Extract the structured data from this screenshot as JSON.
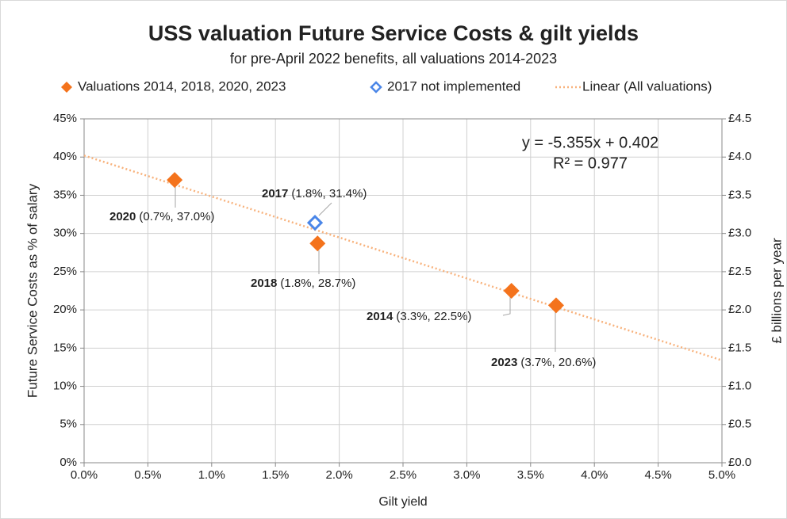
{
  "chart_data": {
    "type": "scatter",
    "title": "USS valuation Future Service Costs & gilt yields",
    "subtitle": "for pre-April 2022 benefits, all valuations 2014-2023",
    "x_label": "Gilt yield",
    "y_label": "Future Service Costs as % of salary",
    "y2_label": "£ billions per year",
    "series": [
      {
        "name": "Valuations 2014, 2018, 2020, 2023",
        "color": "#f4731c",
        "marker": "filled-diamond",
        "x": [
          0.71,
          1.83,
          3.35,
          3.7
        ],
        "values": [
          37.0,
          28.7,
          22.5,
          20.6
        ]
      },
      {
        "name": "2017 not implemented",
        "color": "#4a86e8",
        "marker": "hollow-diamond",
        "x": [
          1.81
        ],
        "values": [
          31.4
        ]
      },
      {
        "name": "Linear (All valuations)",
        "color": "#f8b27c",
        "marker": "dotted-line",
        "x": [
          0,
          5
        ],
        "values": [
          40.2,
          13.4
        ]
      }
    ],
    "annotations": [
      {
        "bold": "2020",
        "text": "(0.7%, 37.0%)"
      },
      {
        "bold": "2017",
        "text": "(1.8%, 31.4%)"
      },
      {
        "bold": "2018",
        "text": "(1.8%, 28.7%)"
      },
      {
        "bold": "2014",
        "text": "(3.3%, 22.5%)"
      },
      {
        "bold": "2023",
        "text": "(3.7%, 20.6%)"
      }
    ],
    "equation": [
      "y = -5.355x + 0.402",
      "R² = 0.977"
    ],
    "xlim": [
      0,
      5
    ],
    "xticks": [
      {
        "value": 0,
        "label": "0.0%"
      },
      {
        "value": 0.5,
        "label": "0.5%"
      },
      {
        "value": 1,
        "label": "1.0%"
      },
      {
        "value": 1.5,
        "label": "1.5%"
      },
      {
        "value": 2,
        "label": "2.0%"
      },
      {
        "value": 2.5,
        "label": "2.5%"
      },
      {
        "value": 3,
        "label": "3.0%"
      },
      {
        "value": 3.5,
        "label": "3.5%"
      },
      {
        "value": 4,
        "label": "4.0%"
      },
      {
        "value": 4.5,
        "label": "4.5%"
      },
      {
        "value": 5,
        "label": "5.0%"
      }
    ],
    "ylim": [
      0,
      45
    ],
    "yticks": [
      {
        "value": 0,
        "label": "0%"
      },
      {
        "value": 5,
        "label": "5%"
      },
      {
        "value": 10,
        "label": "10%"
      },
      {
        "value": 15,
        "label": "15%"
      },
      {
        "value": 20,
        "label": "20%"
      },
      {
        "value": 25,
        "label": "25%"
      },
      {
        "value": 30,
        "label": "30%"
      },
      {
        "value": 35,
        "label": "35%"
      },
      {
        "value": 40,
        "label": "40%"
      },
      {
        "value": 45,
        "label": "45%"
      }
    ],
    "y2lim": [
      0,
      4.5
    ],
    "y2ticks": [
      {
        "value": 0,
        "label": "£0.0"
      },
      {
        "value": 0.5,
        "label": "£0.5"
      },
      {
        "value": 1,
        "label": "£1.0"
      },
      {
        "value": 1.5,
        "label": "£1.5"
      },
      {
        "value": 2,
        "label": "£2.0"
      },
      {
        "value": 2.5,
        "label": "£2.5"
      },
      {
        "value": 3,
        "label": "£3.0"
      },
      {
        "value": 3.5,
        "label": "£3.5"
      },
      {
        "value": 4,
        "label": "£4.0"
      },
      {
        "value": 4.5,
        "label": "£4.5"
      }
    ],
    "grid": true
  }
}
